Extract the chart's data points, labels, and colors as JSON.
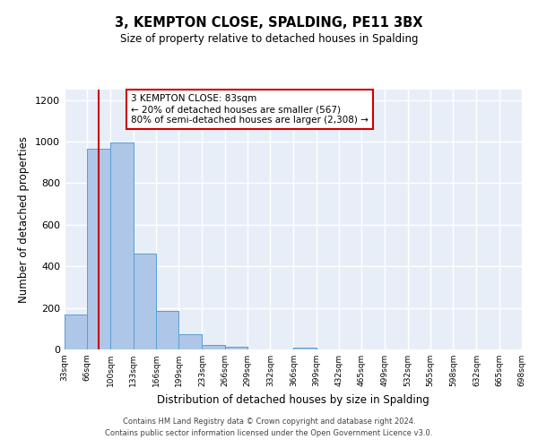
{
  "title": "3, KEMPTON CLOSE, SPALDING, PE11 3BX",
  "subtitle": "Size of property relative to detached houses in Spalding",
  "xlabel": "Distribution of detached houses by size in Spalding",
  "ylabel": "Number of detached properties",
  "bar_edges": [
    33,
    66,
    100,
    133,
    166,
    199,
    233,
    266,
    299,
    332,
    366,
    399,
    432,
    465,
    499,
    532,
    565,
    598,
    632,
    665,
    698
  ],
  "bar_heights": [
    170,
    967,
    997,
    463,
    185,
    75,
    22,
    15,
    0,
    0,
    9,
    0,
    0,
    0,
    0,
    0,
    0,
    0,
    0,
    0
  ],
  "bar_color": "#aec6e8",
  "bar_edge_color": "#5a9fd4",
  "property_size": 83,
  "property_line_color": "#cc0000",
  "annotation_line1": "3 KEMPTON CLOSE: 83sqm",
  "annotation_line2": "← 20% of detached houses are smaller (567)",
  "annotation_line3": "80% of semi-detached houses are larger (2,308) →",
  "annotation_box_color": "#ffffff",
  "annotation_box_edge_color": "#cc0000",
  "ylim": [
    0,
    1250
  ],
  "yticks": [
    0,
    200,
    400,
    600,
    800,
    1000,
    1200
  ],
  "background_color": "#e8eef8",
  "grid_color": "#ffffff",
  "footer_text": "Contains HM Land Registry data © Crown copyright and database right 2024.\nContains public sector information licensed under the Open Government Licence v3.0.",
  "tick_labels": [
    "33sqm",
    "66sqm",
    "100sqm",
    "133sqm",
    "166sqm",
    "199sqm",
    "233sqm",
    "266sqm",
    "299sqm",
    "332sqm",
    "366sqm",
    "399sqm",
    "432sqm",
    "465sqm",
    "499sqm",
    "532sqm",
    "565sqm",
    "598sqm",
    "632sqm",
    "665sqm",
    "698sqm"
  ]
}
